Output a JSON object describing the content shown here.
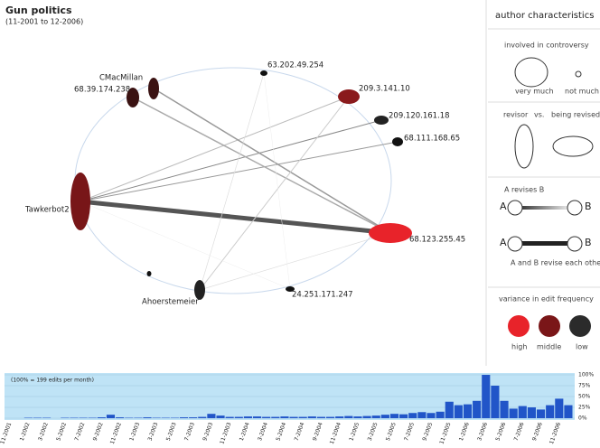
{
  "header": {
    "title": "Gun politics",
    "subtitle": "(11-2001 to 12-2006)"
  },
  "nodes": [
    {
      "label": "CMacMillan"
    },
    {
      "label": "68.39.174.238"
    },
    {
      "label": "63.202.49.254"
    },
    {
      "label": "209.3.141.10"
    },
    {
      "label": "209.120.161.18"
    },
    {
      "label": "68.111.168.65"
    },
    {
      "label": "Tawkerbot2"
    },
    {
      "label": "68.123.255.45"
    },
    {
      "label": "24.251.171.247"
    },
    {
      "label": "Ahoerstemeier"
    }
  ],
  "legend": {
    "title": "author characteristics",
    "controversy": {
      "heading": "involved in controversy",
      "high": "very much",
      "low": "not much"
    },
    "revision": {
      "left": "revisor",
      "mid": "vs.",
      "right": "being revised"
    },
    "one_way": {
      "heading": "A revises B",
      "a": "A",
      "b": "B"
    },
    "two_way": {
      "a": "A",
      "b": "B",
      "caption": "A and B revise each other"
    },
    "frequency": {
      "heading": "variance in edit frequency",
      "high": "high",
      "middle": "middle",
      "low": "low"
    }
  },
  "timeline": {
    "note": "(100% = 199 edits per month)",
    "yticks": [
      {
        "value": 100,
        "label": "100%"
      },
      {
        "value": 75,
        "label": "75%"
      },
      {
        "value": 50,
        "label": "50%"
      },
      {
        "value": 25,
        "label": "25%"
      },
      {
        "value": 0,
        "label": "0%"
      }
    ],
    "months": [
      "11-2001",
      "1-2002",
      "3-2002",
      "5-2002",
      "7-2002",
      "9-2002",
      "11-2002",
      "1-2003",
      "3-2003",
      "5-2003",
      "7-2003",
      "9-2003",
      "11-2003",
      "1-2004",
      "3-2004",
      "5-2004",
      "7-2004",
      "9-2004",
      "11-2004",
      "1-2005",
      "3-2005",
      "5-2005",
      "7-2005",
      "9-2005",
      "11-2005",
      "1-2006",
      "3-2006",
      "5-2006",
      "7-2006",
      "9-2006",
      "11-2006"
    ],
    "values": [
      0,
      0,
      1,
      1,
      1,
      0,
      1,
      1,
      1,
      1,
      2,
      8,
      2,
      1,
      1,
      2,
      1,
      1,
      1,
      2,
      2,
      3,
      10,
      6,
      3,
      3,
      4,
      4,
      3,
      3,
      4,
      3,
      3,
      4,
      3,
      3,
      4,
      5,
      4,
      5,
      6,
      8,
      10,
      9,
      12,
      14,
      12,
      15,
      38,
      30,
      32,
      40,
      100,
      75,
      40,
      22,
      28,
      25,
      20,
      30,
      45,
      30
    ]
  }
}
